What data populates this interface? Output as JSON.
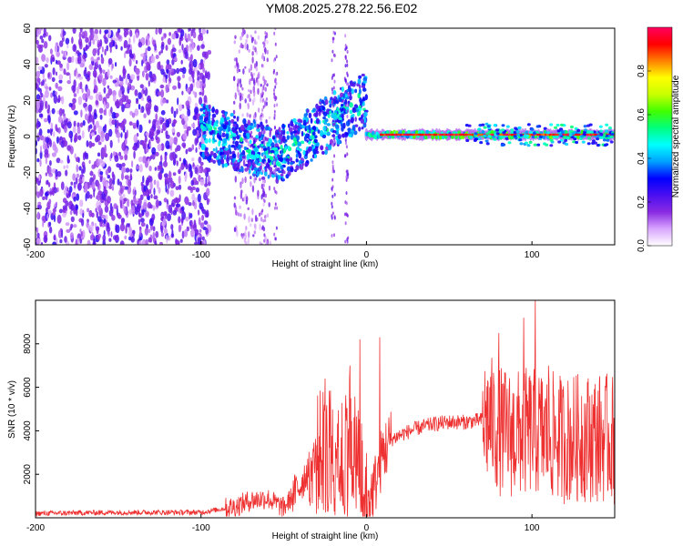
{
  "figure_title": "YM08.2025.278.22.56.E02",
  "chart_data": [
    {
      "type": "heatmap",
      "name": "spectrogram",
      "xlabel": "Height of straight line (km)",
      "ylabel": "Frequency (Hz)",
      "xlim": [
        -200,
        150
      ],
      "ylim": [
        -60,
        60
      ],
      "xticks": [
        -200,
        -100,
        0,
        100
      ],
      "yticks": [
        -60,
        -40,
        -20,
        0,
        20,
        40,
        60
      ],
      "colorbar": {
        "label": "Normalized spectral amplitude",
        "range": [
          0,
          1
        ],
        "ticks": [
          0.0,
          0.2,
          0.4,
          0.6,
          0.8
        ],
        "colormap": [
          "#ffffff",
          "#d9a6ff",
          "#8a2be2",
          "#4b0ff0",
          "#0000ff",
          "#00a0ff",
          "#00ffff",
          "#00ff80",
          "#40ff00",
          "#c8ff00",
          "#ffff00",
          "#ff8000",
          "#ff0000",
          "#ff0060"
        ]
      },
      "features": {
        "noise_region_x": [
          -200,
          -95
        ],
        "carrier_start_x": 0,
        "carrier_frequency": 1
      }
    },
    {
      "type": "line",
      "name": "snr",
      "xlabel": "Height of straight line (km)",
      "ylabel": "SNR (10 * v/v)",
      "xlim": [
        -200,
        150
      ],
      "ylim": [
        0,
        10000
      ],
      "xticks": [
        -200,
        -100,
        0,
        100
      ],
      "yticks": [
        2000,
        4000,
        6000,
        8000
      ],
      "color": "#ee3030",
      "x": [
        -200,
        -150,
        -100,
        -80,
        -70,
        -60,
        -50,
        -40,
        -30,
        -20,
        -15,
        -10,
        -5,
        0,
        5,
        10,
        15,
        20,
        30,
        40,
        50,
        60,
        70,
        75,
        80,
        90,
        100,
        110,
        120,
        130,
        140,
        150
      ],
      "y": [
        200,
        250,
        250,
        500,
        800,
        900,
        450,
        1500,
        3000,
        3500,
        3800,
        4000,
        3000,
        500,
        1500,
        3000,
        3600,
        3800,
        4100,
        4300,
        4400,
        4400,
        4500,
        4500,
        4000,
        3800,
        4000,
        3800,
        3600,
        3700,
        3700,
        3600
      ],
      "peaks": [
        {
          "x": -25,
          "y": 6400
        },
        {
          "x": -10,
          "y": 7000
        },
        {
          "x": -4,
          "y": 8200
        },
        {
          "x": 8,
          "y": 8300
        },
        {
          "x": 80,
          "y": 8500
        },
        {
          "x": 95,
          "y": 9200
        },
        {
          "x": 102,
          "y": 10000
        },
        {
          "x": 110,
          "y": 7000
        },
        {
          "x": 130,
          "y": 5600
        }
      ]
    }
  ]
}
